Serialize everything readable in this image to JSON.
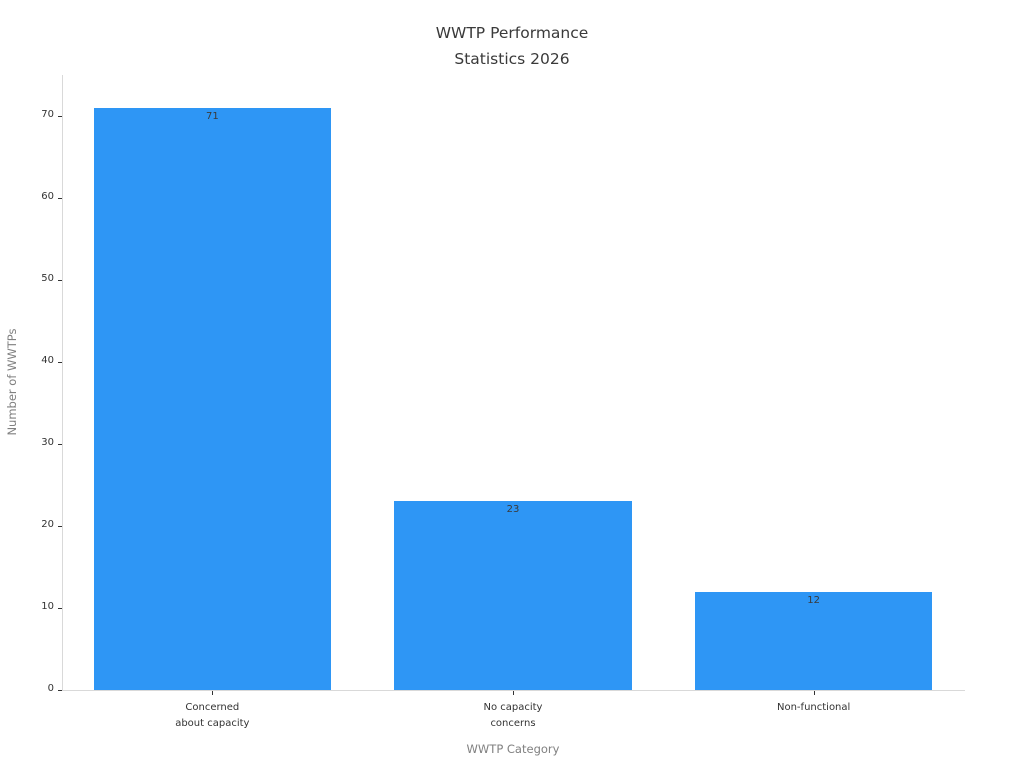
{
  "chart_data": {
    "type": "bar",
    "title": "WWTP Performance\nStatistics 2026",
    "categories": [
      "Concerned\nabout capacity",
      "No capacity\nconcerns",
      "Non-functional"
    ],
    "values": [
      71,
      23,
      12
    ],
    "value_labels": [
      "71",
      "23",
      "12"
    ],
    "xlabel": "WWTP Category",
    "ylabel": "Number of WWTPs",
    "ylim": [
      0,
      75
    ],
    "yticks": [
      0,
      10,
      20,
      30,
      40,
      50,
      60,
      70
    ],
    "grid": false,
    "legend": "none",
    "bar_color": "#2e96f5",
    "spine_color": "#d9d9d9",
    "tick_color": "#333333",
    "value_label_color": "#3a3a3a",
    "title_color": "#3a3a3a",
    "axis_label_color": "#808080"
  }
}
